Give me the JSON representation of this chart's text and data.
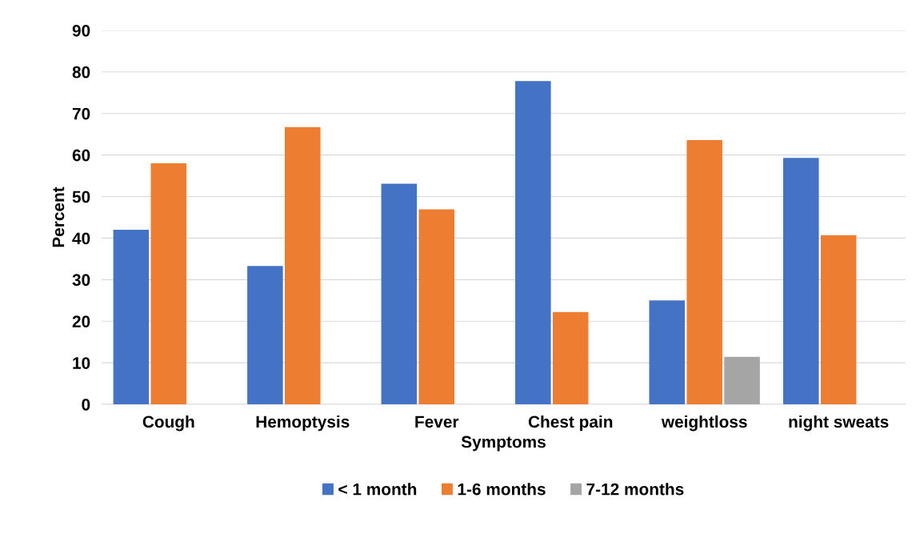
{
  "chart_data": {
    "type": "bar",
    "xlabel": "Symptoms",
    "ylabel": "Percent",
    "categories": [
      "Cough",
      "Hemoptysis",
      "Fever",
      "Chest pain",
      "weightloss",
      "night sweats"
    ],
    "series": [
      {
        "name": "< 1 month",
        "color": "#4472c4",
        "values": [
          42,
          33.3,
          53.1,
          77.8,
          25,
          59.3
        ]
      },
      {
        "name": "1-6 months",
        "color": "#ed7d31",
        "values": [
          58,
          66.7,
          46.9,
          22.2,
          63.6,
          40.7
        ]
      },
      {
        "name": "7-12 months",
        "color": "#a5a5a5",
        "values": [
          null,
          null,
          null,
          null,
          11.4,
          null
        ]
      }
    ],
    "ylim": [
      0,
      90
    ],
    "yticks": [
      0,
      10,
      20,
      30,
      40,
      50,
      60,
      70,
      80,
      90
    ],
    "grid": "y",
    "legend": "bottom"
  }
}
